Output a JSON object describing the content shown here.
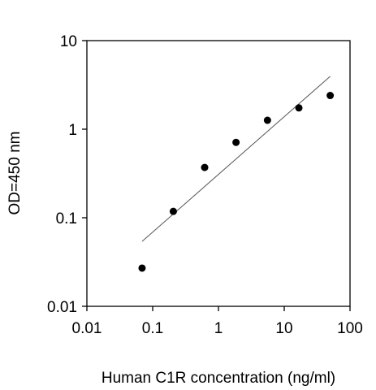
{
  "chart_data": {
    "type": "scatter",
    "title": "",
    "xlabel": "Human C1R concentration (ng/ml)",
    "ylabel": "OD=450 nm",
    "xscale": "log",
    "yscale": "log",
    "xlim": [
      0.01,
      100
    ],
    "ylim": [
      0.01,
      10
    ],
    "x_ticks": [
      0.01,
      0.1,
      1,
      10,
      100
    ],
    "x_tick_labels": [
      "0.01",
      "0.1",
      "1",
      "10",
      "100"
    ],
    "y_ticks": [
      0.01,
      0.1,
      1,
      10
    ],
    "y_tick_labels": [
      "0.01",
      "0.1",
      "1",
      "10"
    ],
    "grid": false,
    "legend": "none",
    "series": [
      {
        "x": [
          0.069,
          0.206,
          0.617,
          1.85,
          5.56,
          16.7,
          50
        ],
        "y": [
          0.027,
          0.118,
          0.37,
          0.71,
          1.26,
          1.74,
          2.4
        ]
      }
    ],
    "trendline": {
      "x": [
        0.069,
        50
      ],
      "y": [
        0.054,
        3.95
      ]
    },
    "colors": {
      "points": "#000000",
      "trendline": "#555555",
      "axes": "#000000"
    }
  }
}
